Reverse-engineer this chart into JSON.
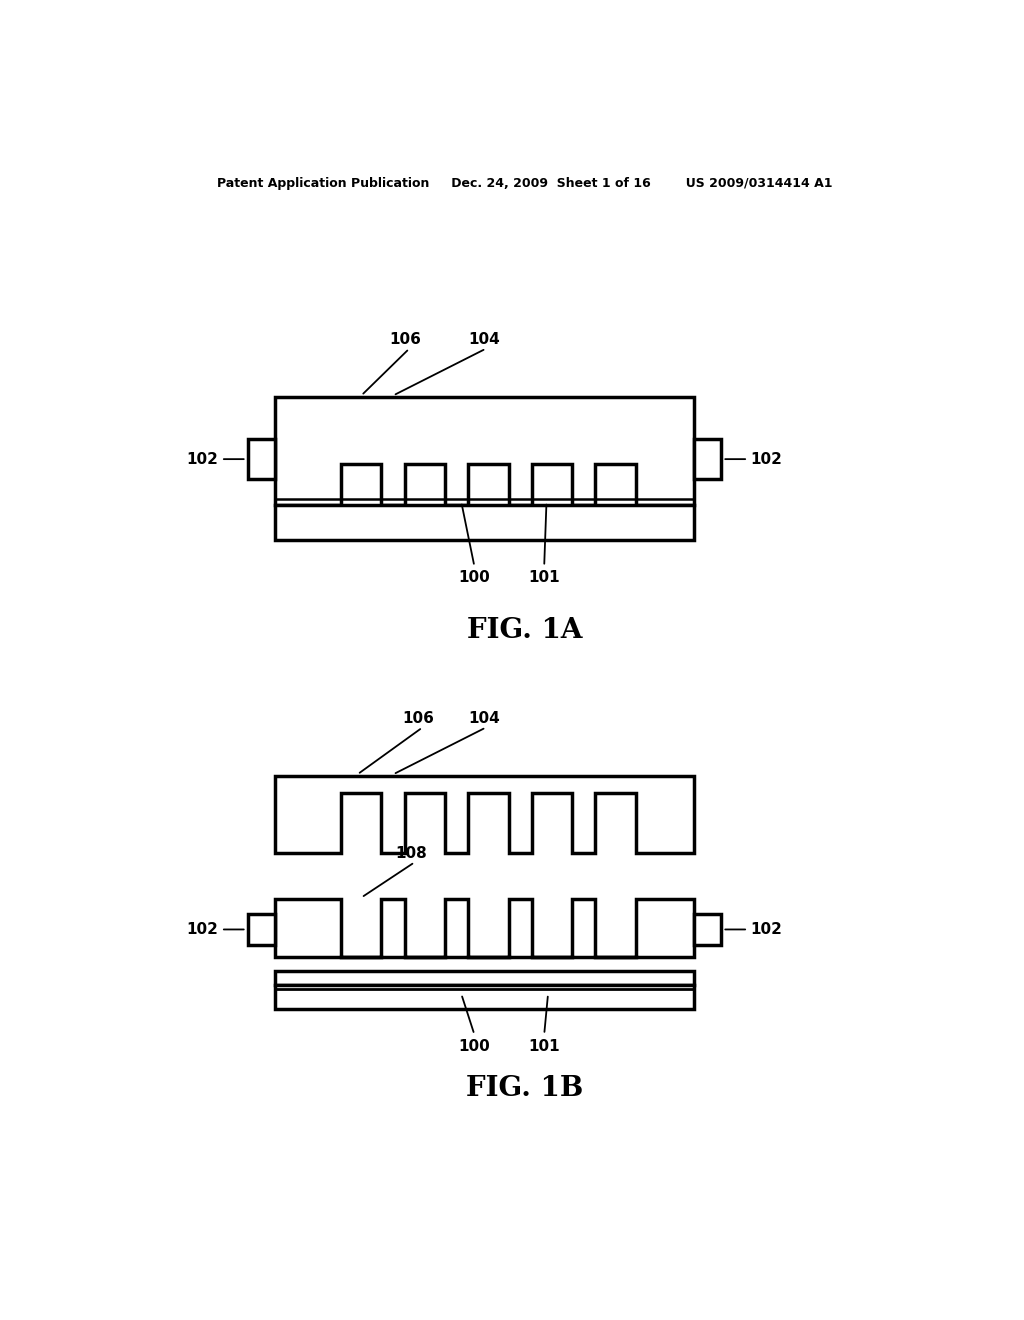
{
  "bg_color": "#ffffff",
  "line_color": "#000000",
  "lw": 2.5,
  "header": "Patent Application Publication     Dec. 24, 2009  Sheet 1 of 16        US 2009/0314414 A1",
  "fig1a_label": "FIG. 1A",
  "fig1b_label": "FIG. 1B"
}
